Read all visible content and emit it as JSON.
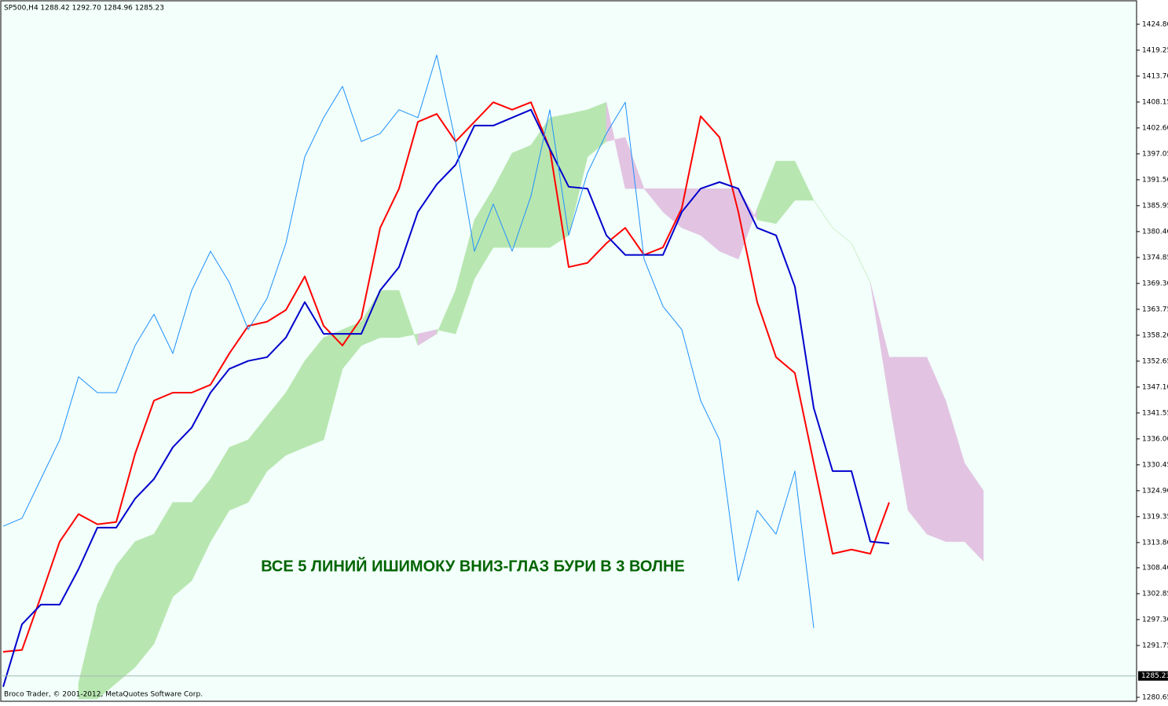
{
  "chart_data": {
    "type": "ichimoku",
    "header": "SP500,H4  1288.42 1292.70 1284.96 1285.23",
    "footer": "Broco Trader, © 2001-2012, MetaQuotes Software Corp.",
    "annotation": "ВСЕ 5 ЛИНИЙ ИШИМОКУ ВНИЗ-ГЛАЗ БУРИ В 3 ВОЛНЕ",
    "current_price": 1285.23,
    "categories": [
      null,
      null,
      null,
      null,
      null,
      null,
      null,
      null,
      null,
      null,
      null,
      null,
      null,
      null,
      null,
      null,
      null,
      null,
      null,
      null,
      null,
      null,
      null,
      null,
      null,
      null,
      null,
      null,
      null,
      null,
      null,
      null,
      null,
      null,
      null,
      null,
      null,
      null,
      null,
      null,
      null,
      null,
      null,
      null,
      null,
      null,
      null,
      null,
      null,
      null,
      null,
      null,
      null
    ],
    "series": [
      {
        "color": "#ff0000",
        "width": 2,
        "values": [
          1290.4,
          1290.8,
          1302.2,
          1314.0,
          1319.9,
          1317.7,
          1318.2,
          1332.8,
          1344.2,
          1345.9,
          1345.9,
          1347.6,
          1354.3,
          1360.2,
          1361.1,
          1363.6,
          1370.8,
          1360.2,
          1356.0,
          1361.9,
          1381.2,
          1389.6,
          1403.9,
          1405.6,
          1399.7,
          1403.9,
          1408.1,
          1406.5,
          1408.1,
          1398.1,
          1372.8,
          1373.7,
          1377.9,
          1381.2,
          1375.4,
          1377.0,
          1385.4,
          1405.1,
          1400.6,
          1384.6,
          1365.3,
          1353.5,
          1350.1,
          1330.8,
          1311.4,
          1312.3,
          1311.4,
          1322.4,
          null,
          null,
          null,
          null,
          null
        ]
      },
      {
        "color": "#0000cd",
        "width": 2,
        "values": [
          1282.9,
          1296.3,
          1300.5,
          1300.5,
          1308.1,
          1317.0,
          1317.0,
          1323.2,
          1327.4,
          1334.2,
          1338.4,
          1345.9,
          1351.0,
          1352.7,
          1353.5,
          1357.7,
          1365.3,
          1358.5,
          1358.5,
          1358.5,
          1367.8,
          1372.8,
          1384.6,
          1390.5,
          1394.7,
          1403.1,
          1403.1,
          1404.8,
          1406.5,
          1398.1,
          1390.0,
          1389.6,
          1379.6,
          1375.4,
          1375.4,
          1375.4,
          1384.6,
          1389.6,
          1391.0,
          1389.6,
          1381.2,
          1379.6,
          1368.6,
          1342.6,
          1329.1,
          1329.1,
          1314.0,
          1313.6,
          null,
          null,
          null,
          null,
          null
        ]
      },
      {
        "color": "#1e90ff",
        "width": 1,
        "values": [
          1317.3,
          1319.0,
          1327.4,
          1335.8,
          1349.3,
          1345.9,
          1345.9,
          1356.0,
          1362.7,
          1354.3,
          1367.8,
          1376.2,
          1369.5,
          1359.4,
          1366.1,
          1377.9,
          1396.4,
          1404.8,
          1411.5,
          1399.7,
          1401.4,
          1406.5,
          1404.8,
          1418.2,
          1399.7,
          1376.2,
          1386.3,
          1376.2,
          1388.0,
          1406.5,
          1379.6,
          1393.0,
          1401.4,
          1408.1,
          1374.5,
          1364.4,
          1359.4,
          1344.2,
          1335.8,
          1305.6,
          1320.7,
          1315.6,
          1329.1,
          1295.5,
          null,
          null,
          null,
          null,
          null,
          null,
          null,
          null,
          null
        ]
      }
    ],
    "cloud": {
      "up_color": "#b8e6b0",
      "down_color": "#e2c4e2",
      "span_a": [
        null,
        null,
        null,
        null,
        1283.7,
        1300.5,
        1308.9,
        1314.0,
        1315.6,
        1322.4,
        1322.4,
        1327.4,
        1334.2,
        1335.8,
        1340.9,
        1345.9,
        1352.7,
        1357.7,
        1359.4,
        1361.1,
        1367.8,
        1367.8,
        1356.0,
        1358.5,
        1367.8,
        1382.9,
        1389.6,
        1397.2,
        1398.9,
        1404.8,
        1405.6,
        1406.5,
        1408.1,
        1389.6,
        1389.6,
        1384.6,
        1381.2,
        1379.6,
        1376.2,
        1374.5,
        1385.4,
        1395.5,
        1395.5,
        1387.1,
        1381.2,
        1377.9,
        1369.5,
        1344.2,
        1320.7,
        1315.6,
        1314.0,
        1314.0,
        1309.8
      ],
      "span_b": [
        null,
        null,
        null,
        null,
        1280.3,
        1280.3,
        1283.7,
        1287.1,
        1292.1,
        1302.2,
        1305.6,
        1314.0,
        1320.7,
        1322.4,
        1329.1,
        1332.5,
        1334.2,
        1335.8,
        1351.0,
        1356.0,
        1357.7,
        1357.7,
        1358.5,
        1359.4,
        1358.5,
        1370.3,
        1377.0,
        1377.0,
        1377.0,
        1377.0,
        1379.6,
        1396.4,
        1399.7,
        1400.6,
        1389.6,
        1389.6,
        1389.6,
        1389.6,
        1389.6,
        1389.6,
        1382.9,
        1382.1,
        1387.1,
        1387.1,
        1381.2,
        1377.9,
        1369.5,
        1353.5,
        1353.5,
        1353.5,
        1344.2,
        1330.8,
        1324.9
      ]
    },
    "ylim": [
      1279.8,
      1430.0
    ],
    "yticks": [
      {
        "value": 1424.8,
        "label": "1424.80"
      },
      {
        "value": 1419.25,
        "label": "1419.25"
      },
      {
        "value": 1413.7,
        "label": "1413.70"
      },
      {
        "value": 1408.15,
        "label": "1408.15"
      },
      {
        "value": 1402.6,
        "label": "1402.60"
      },
      {
        "value": 1397.05,
        "label": "1397.05"
      },
      {
        "value": 1391.5,
        "label": "1391.50"
      },
      {
        "value": 1385.95,
        "label": "1385.95"
      },
      {
        "value": 1380.4,
        "label": "1380.40"
      },
      {
        "value": 1374.85,
        "label": "1374.85"
      },
      {
        "value": 1369.3,
        "label": "1369.30"
      },
      {
        "value": 1363.75,
        "label": "1363.75"
      },
      {
        "value": 1358.2,
        "label": "1358.20"
      },
      {
        "value": 1352.65,
        "label": "1352.65"
      },
      {
        "value": 1347.1,
        "label": "1347.10"
      },
      {
        "value": 1341.55,
        "label": "1341.55"
      },
      {
        "value": 1336.0,
        "label": "1336.00"
      },
      {
        "value": 1330.45,
        "label": "1330.45"
      },
      {
        "value": 1324.9,
        "label": "1324.90"
      },
      {
        "value": 1319.35,
        "label": "1319.35"
      },
      {
        "value": 1313.8,
        "label": "1313.80"
      },
      {
        "value": 1308.4,
        "label": "1308.40"
      },
      {
        "value": 1302.85,
        "label": "1302.85"
      },
      {
        "value": 1297.3,
        "label": "1297.30"
      },
      {
        "value": 1291.75,
        "label": "1291.75"
      },
      {
        "value": 1280.65,
        "label": "1280.65"
      }
    ]
  }
}
